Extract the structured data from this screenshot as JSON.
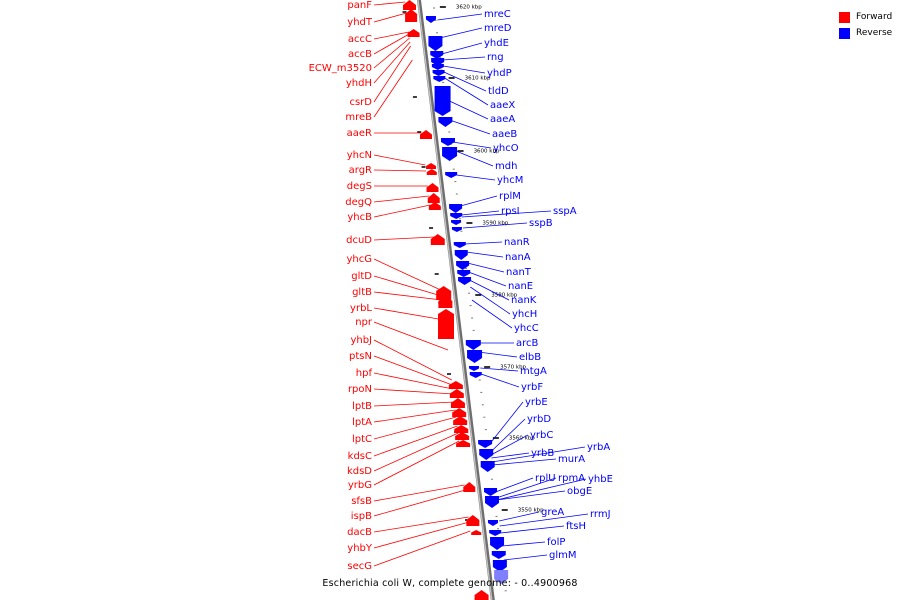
{
  "caption": "Escherichia coli W, complete genome: - 0..4900968",
  "legend": [
    {
      "label": "Forward",
      "color": "#ff0000"
    },
    {
      "label": "Reverse",
      "color": "#0000ff"
    }
  ],
  "colors": {
    "forward": "#ff0000",
    "reverse": "#0000ff",
    "backbone": "#999999"
  },
  "ticks": [
    "3620 kbp",
    "3610 kbp",
    "3600 kbp",
    "3590 kbp",
    "3580 kbp",
    "3570 kbp",
    "3560 kbp",
    "3550 kbp"
  ],
  "forward_genes": [
    "panF",
    "yhdT",
    "accC",
    "accB",
    "ECW_m3520",
    "yhdH",
    "csrD",
    "mreB",
    "aaeR",
    "yhcN",
    "argR",
    "degS",
    "degQ",
    "yhcB",
    "dcuD",
    "yhcG",
    "gltD",
    "gltB",
    "yrbL",
    "npr",
    "yhbJ",
    "ptsN",
    "hpf",
    "rpoN",
    "lptB",
    "lptA",
    "lptC",
    "kdsC",
    "kdsD",
    "yrbG",
    "sfsB",
    "ispB",
    "dacB",
    "yhbY",
    "secG"
  ],
  "reverse_genes": [
    "mreC",
    "mreD",
    "yhdE",
    "rng",
    "yhdP",
    "tldD",
    "aaeX",
    "aaeA",
    "aaeB",
    "yhcO",
    "mdh",
    "yhcM",
    "rplM",
    "rpsI",
    "sspA",
    "sspB",
    "nanR",
    "nanA",
    "nanT",
    "nanE",
    "nanK",
    "yhcH",
    "yhcC",
    "arcB",
    "elbB",
    "mtgA",
    "yrbF",
    "yrbE",
    "yrbD",
    "yrbC",
    "yrbB",
    "yrbA",
    "murA",
    "rplU",
    "rpmA",
    "yhbE",
    "obgE",
    "greA",
    "rrmJ",
    "ftsH",
    "folP",
    "glmM"
  ]
}
